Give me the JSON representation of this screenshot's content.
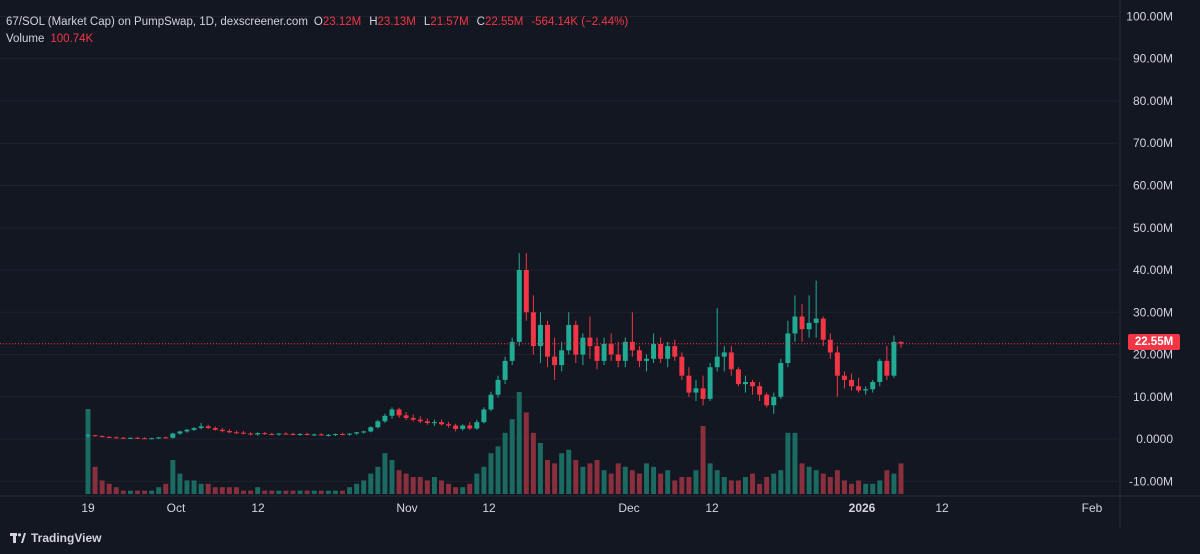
{
  "legend": {
    "pair": "67/SOL (Market Cap) on PumpSwap, 1D, dexscreener.com",
    "o_label": "O",
    "o_value": "23.12M",
    "h_label": "H",
    "h_value": "23.13M",
    "l_label": "L",
    "l_value": "21.57M",
    "c_label": "C",
    "c_value": "22.55M",
    "change": "-564.14K (−2.44%)",
    "volume_label": "Volume",
    "volume_value": "100.74K"
  },
  "price_badge": "22.55M",
  "footer": {
    "brand": "TradingView"
  },
  "colors": {
    "up": "#22ab94",
    "down": "#f23645",
    "up_vol": "#1b6b62",
    "down_vol": "#8a2f3d",
    "background": "#131722",
    "grid": "#1e222d",
    "text": "#d1d4dc"
  },
  "chart_data": {
    "type": "candlestick",
    "y_axis": {
      "min": -13000000,
      "max": 102000000,
      "ticks": [
        "100.00M",
        "90.00M",
        "80.00M",
        "70.00M",
        "60.00M",
        "50.00M",
        "40.00M",
        "30.00M",
        "20.00M",
        "10.00M",
        "0.0000",
        "-10.00M"
      ],
      "tick_values": [
        100000000,
        90000000,
        80000000,
        70000000,
        60000000,
        50000000,
        40000000,
        30000000,
        20000000,
        10000000,
        0,
        -10000000
      ]
    },
    "x_axis": {
      "labels": [
        "19",
        "Oct",
        "12",
        "Nov",
        "12",
        "Dec",
        "12",
        "2026",
        "12",
        "Feb"
      ],
      "bold": [
        "2026"
      ]
    },
    "last_price": 22550000,
    "start_date": "2025-09-19",
    "candles_millions": [
      [
        0.8,
        1.2,
        0.3,
        0.9
      ],
      [
        0.9,
        1.0,
        0.6,
        0.7
      ],
      [
        0.7,
        0.9,
        0.4,
        0.5
      ],
      [
        0.5,
        0.7,
        0.3,
        0.4
      ],
      [
        0.4,
        0.6,
        0.2,
        0.3
      ],
      [
        0.3,
        0.5,
        0.1,
        0.2
      ],
      [
        0.2,
        0.4,
        0.0,
        0.3
      ],
      [
        0.3,
        0.5,
        0.1,
        0.2
      ],
      [
        0.2,
        0.4,
        0.0,
        0.1
      ],
      [
        0.1,
        0.3,
        -0.1,
        0.2
      ],
      [
        0.2,
        0.5,
        0.0,
        0.4
      ],
      [
        0.4,
        0.6,
        0.2,
        0.3
      ],
      [
        0.3,
        1.5,
        0.1,
        1.3
      ],
      [
        1.3,
        2.0,
        1.0,
        1.8
      ],
      [
        1.8,
        2.4,
        1.5,
        2.2
      ],
      [
        2.2,
        2.8,
        1.9,
        2.6
      ],
      [
        2.6,
        3.8,
        2.3,
        3.0
      ],
      [
        3.0,
        3.4,
        2.4,
        2.6
      ],
      [
        2.6,
        3.0,
        2.0,
        2.2
      ],
      [
        2.2,
        2.6,
        1.6,
        1.9
      ],
      [
        1.9,
        2.3,
        1.4,
        1.6
      ],
      [
        1.6,
        2.0,
        1.2,
        1.5
      ],
      [
        1.5,
        1.9,
        1.1,
        1.3
      ],
      [
        1.3,
        1.6,
        0.9,
        1.1
      ],
      [
        1.1,
        1.6,
        0.8,
        1.4
      ],
      [
        1.4,
        1.7,
        1.0,
        1.2
      ],
      [
        1.2,
        1.5,
        0.9,
        1.1
      ],
      [
        1.1,
        1.4,
        0.8,
        1.3
      ],
      [
        1.3,
        1.6,
        1.0,
        1.2
      ],
      [
        1.2,
        1.5,
        0.9,
        1.1
      ],
      [
        1.1,
        1.4,
        0.8,
        1.2
      ],
      [
        1.2,
        1.5,
        0.9,
        1.0
      ],
      [
        1.0,
        1.3,
        0.7,
        1.1
      ],
      [
        1.1,
        1.4,
        0.8,
        0.9
      ],
      [
        0.9,
        1.2,
        0.6,
        1.0
      ],
      [
        1.0,
        1.3,
        0.7,
        1.2
      ],
      [
        1.2,
        1.5,
        0.9,
        1.1
      ],
      [
        1.1,
        1.4,
        0.8,
        1.3
      ],
      [
        1.3,
        1.7,
        1.0,
        1.6
      ],
      [
        1.6,
        2.0,
        1.3,
        1.8
      ],
      [
        1.8,
        3.0,
        1.6,
        2.8
      ],
      [
        2.8,
        4.6,
        2.5,
        4.2
      ],
      [
        4.2,
        6.0,
        3.8,
        5.5
      ],
      [
        5.5,
        7.5,
        4.8,
        7.0
      ],
      [
        7.0,
        7.4,
        5.0,
        5.6
      ],
      [
        5.6,
        6.4,
        4.5,
        5.0
      ],
      [
        5.0,
        5.8,
        4.2,
        4.6
      ],
      [
        4.6,
        5.4,
        3.8,
        4.2
      ],
      [
        4.2,
        4.9,
        3.4,
        3.8
      ],
      [
        3.8,
        4.6,
        3.1,
        4.0
      ],
      [
        4.0,
        4.6,
        3.2,
        3.5
      ],
      [
        3.5,
        4.1,
        2.7,
        3.2
      ],
      [
        3.2,
        3.6,
        1.8,
        2.4
      ],
      [
        2.4,
        3.5,
        2.0,
        3.2
      ],
      [
        3.2,
        4.0,
        2.2,
        2.5
      ],
      [
        2.5,
        4.6,
        2.2,
        4.0
      ],
      [
        4.0,
        7.5,
        3.7,
        7.0
      ],
      [
        7.0,
        11.2,
        6.6,
        10.5
      ],
      [
        10.5,
        15.0,
        9.8,
        14.0
      ],
      [
        14.0,
        19.5,
        13.0,
        18.5
      ],
      [
        18.5,
        24.0,
        17.5,
        23.0
      ],
      [
        23.0,
        44.0,
        22.0,
        40.0
      ],
      [
        40.0,
        44.0,
        28.0,
        30.0
      ],
      [
        30.0,
        34.0,
        20.0,
        22.0
      ],
      [
        22.0,
        30.0,
        18.0,
        27.0
      ],
      [
        27.0,
        28.0,
        17.0,
        19.5
      ],
      [
        19.5,
        24.0,
        14.0,
        17.5
      ],
      [
        17.5,
        23.0,
        16.0,
        21.0
      ],
      [
        21.0,
        30.0,
        20.0,
        27.0
      ],
      [
        27.0,
        28.0,
        18.0,
        20.0
      ],
      [
        20.0,
        25.0,
        17.5,
        24.0
      ],
      [
        24.0,
        29.0,
        19.0,
        22.0
      ],
      [
        22.0,
        24.0,
        16.5,
        18.5
      ],
      [
        18.5,
        24.0,
        17.5,
        22.5
      ],
      [
        22.5,
        25.0,
        18.5,
        20.0
      ],
      [
        20.0,
        23.0,
        17.0,
        18.5
      ],
      [
        18.5,
        24.0,
        17.0,
        23.0
      ],
      [
        23.0,
        30.0,
        19.5,
        21.0
      ],
      [
        21.0,
        22.0,
        17.0,
        18.5
      ],
      [
        18.5,
        20.0,
        16.0,
        19.0
      ],
      [
        19.0,
        25.0,
        18.0,
        22.5
      ],
      [
        22.5,
        24.0,
        18.0,
        19.0
      ],
      [
        19.0,
        23.0,
        17.0,
        22.0
      ],
      [
        22.0,
        23.5,
        18.5,
        19.5
      ],
      [
        19.5,
        20.5,
        14.0,
        15.0
      ],
      [
        15.0,
        17.0,
        10.0,
        11.0
      ],
      [
        11.0,
        14.0,
        9.0,
        12.0
      ],
      [
        12.0,
        15.0,
        8.0,
        9.5
      ],
      [
        9.5,
        18.0,
        9.0,
        17.0
      ],
      [
        17.0,
        31.0,
        16.0,
        19.5
      ],
      [
        19.5,
        22.0,
        16.0,
        20.5
      ],
      [
        20.5,
        22.0,
        15.0,
        16.5
      ],
      [
        16.5,
        17.0,
        12.5,
        13.0
      ],
      [
        13.0,
        15.0,
        11.0,
        13.5
      ],
      [
        13.5,
        14.0,
        10.5,
        12.5
      ],
      [
        12.5,
        13.5,
        9.0,
        10.5
      ],
      [
        10.5,
        11.0,
        7.5,
        8.0
      ],
      [
        8.0,
        11.0,
        6.0,
        10.0
      ],
      [
        10.0,
        19.0,
        9.5,
        18.0
      ],
      [
        18.0,
        28.0,
        17.0,
        25.0
      ],
      [
        25.0,
        34.0,
        23.0,
        29.0
      ],
      [
        29.0,
        32.0,
        23.0,
        26.0
      ],
      [
        26.0,
        34.0,
        24.0,
        27.5
      ],
      [
        27.5,
        37.5,
        24.0,
        28.5
      ],
      [
        28.5,
        29.0,
        22.0,
        23.5
      ],
      [
        23.5,
        25.0,
        19.0,
        20.5
      ],
      [
        20.5,
        22.0,
        10.0,
        15.0
      ],
      [
        15.0,
        16.0,
        12.0,
        14.0
      ],
      [
        14.0,
        15.5,
        11.5,
        12.5
      ],
      [
        12.5,
        14.5,
        11.0,
        11.5
      ],
      [
        11.5,
        12.5,
        10.5,
        11.8
      ],
      [
        11.8,
        14.0,
        11.0,
        13.5
      ],
      [
        13.5,
        19.0,
        12.5,
        18.5
      ],
      [
        18.5,
        22.0,
        14.0,
        15.0
      ],
      [
        15.0,
        24.5,
        14.5,
        23.0
      ],
      [
        23.0,
        23.1,
        21.6,
        22.6
      ]
    ],
    "volume_heights": [
      25,
      8,
      4,
      3,
      2,
      1,
      1,
      1,
      1,
      1,
      2,
      3,
      10,
      6,
      4,
      4,
      3,
      3,
      2,
      2,
      2,
      2,
      1,
      1,
      2,
      1,
      1,
      1,
      1,
      1,
      1,
      1,
      1,
      1,
      1,
      1,
      1,
      2,
      3,
      4,
      6,
      8,
      12,
      10,
      7,
      6,
      5,
      5,
      4,
      5,
      4,
      3,
      2,
      2,
      3,
      6,
      8,
      12,
      14,
      18,
      22,
      30,
      24,
      18,
      15,
      10,
      9,
      12,
      13,
      10,
      8,
      9,
      10,
      7,
      6,
      9,
      8,
      7,
      6,
      9,
      8,
      6,
      7,
      4,
      5,
      5,
      7,
      20,
      9,
      7,
      5,
      4,
      4,
      5,
      6,
      3,
      5,
      6,
      7,
      18,
      18,
      9,
      8,
      7,
      6,
      5,
      7,
      4,
      3,
      4,
      3,
      3,
      4,
      7,
      6,
      9,
      1
    ]
  }
}
